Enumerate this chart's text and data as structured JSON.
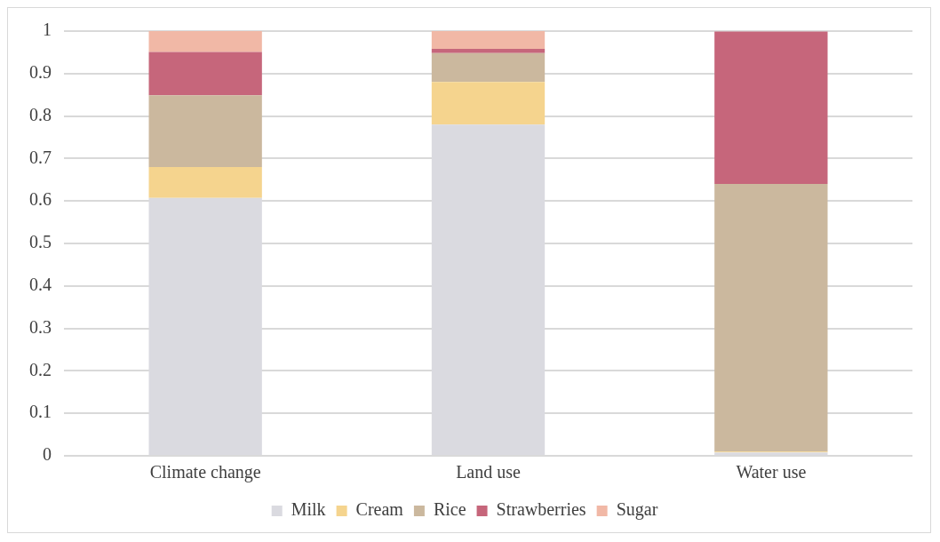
{
  "chart_data": {
    "type": "bar",
    "stacked": true,
    "categories": [
      "Climate change",
      "Land use",
      "Water use"
    ],
    "series": [
      {
        "name": "Milk",
        "color": "#dadae0",
        "values": [
          0.607,
          0.78,
          0.008
        ]
      },
      {
        "name": "Cream",
        "color": "#f5d48e",
        "values": [
          0.073,
          0.1,
          0.002
        ]
      },
      {
        "name": "Rice",
        "color": "#cbb89e",
        "values": [
          0.169,
          0.068,
          0.63
        ]
      },
      {
        "name": "Strawberries",
        "color": "#c6667b",
        "values": [
          0.102,
          0.01,
          0.359
        ]
      },
      {
        "name": "Sugar",
        "color": "#f1b8a6",
        "values": [
          0.049,
          0.042,
          null
        ]
      }
    ],
    "ylim": [
      0,
      1
    ],
    "yticks": [
      0,
      0.1,
      0.2,
      0.3,
      0.4,
      0.5,
      0.6,
      0.7,
      0.8,
      0.9,
      1
    ],
    "grid": "y",
    "legend": "bottom"
  }
}
